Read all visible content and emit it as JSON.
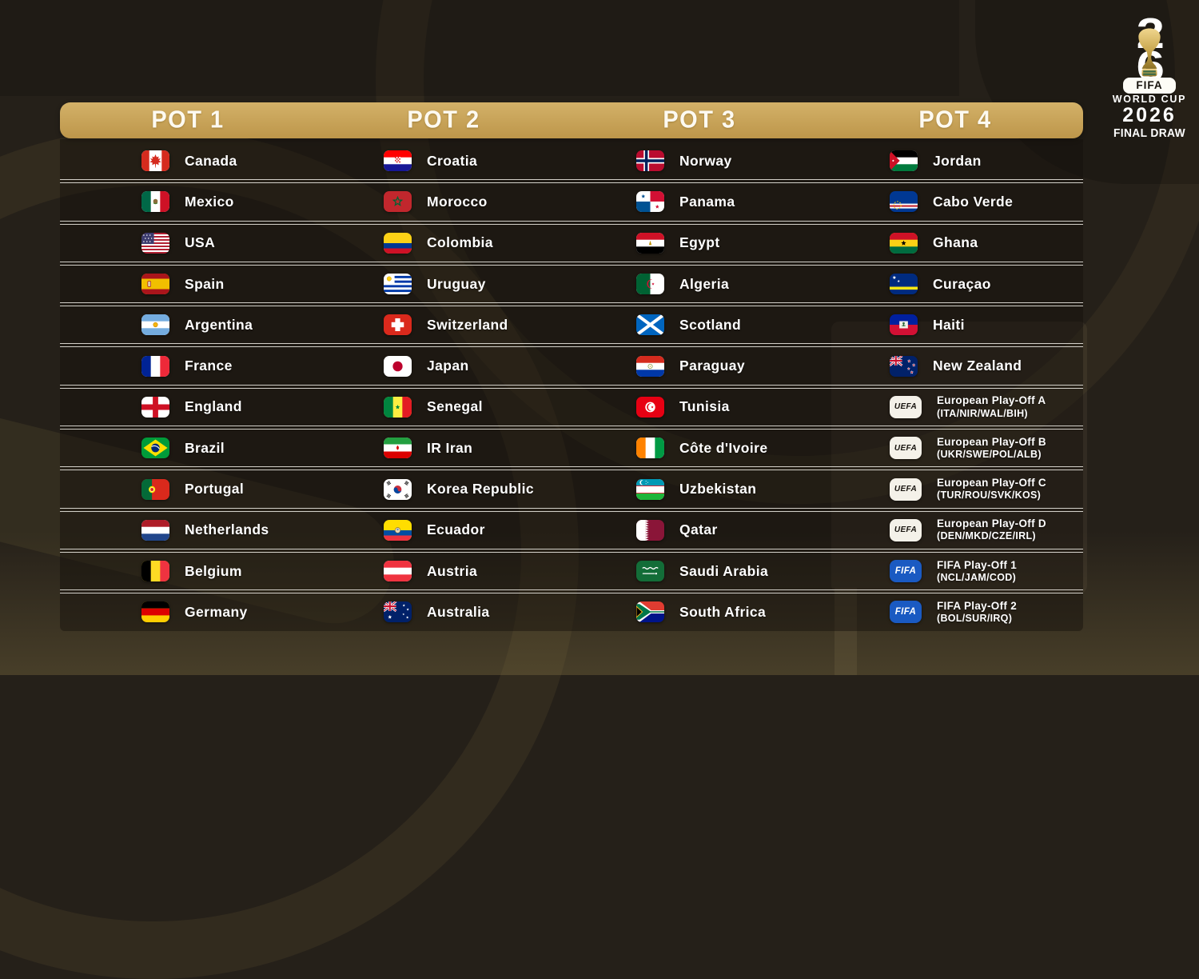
{
  "badges": {
    "uefa": "UEFA",
    "fifa": "FIFA"
  },
  "colors": {
    "header_gold": "#C7A355",
    "background": "#252019",
    "separator": "#FAF8F0",
    "fifa_badge_blue": "#1A5AC2",
    "uefa_badge_white": "#F4F1E9",
    "text": "#FFFFFF"
  },
  "logo": {
    "digit_top": "2",
    "digit_bottom": "6",
    "fifa": "FIFA",
    "world_cup": "WORLD CUP",
    "year": "2026",
    "final_draw": "FINAL DRAW",
    "trophy_icon": "world-cup-trophy-icon"
  },
  "pots": [
    {
      "name": "POT 1",
      "teams": [
        {
          "label": "Canada",
          "flag": "canada"
        },
        {
          "label": "Mexico",
          "flag": "mexico"
        },
        {
          "label": "USA",
          "flag": "usa"
        },
        {
          "label": "Spain",
          "flag": "spain"
        },
        {
          "label": "Argentina",
          "flag": "argentina"
        },
        {
          "label": "France",
          "flag": "france"
        },
        {
          "label": "England",
          "flag": "england"
        },
        {
          "label": "Brazil",
          "flag": "brazil"
        },
        {
          "label": "Portugal",
          "flag": "portugal"
        },
        {
          "label": "Netherlands",
          "flag": "netherlands"
        },
        {
          "label": "Belgium",
          "flag": "belgium"
        },
        {
          "label": "Germany",
          "flag": "germany"
        }
      ]
    },
    {
      "name": "POT 2",
      "teams": [
        {
          "label": "Croatia",
          "flag": "croatia"
        },
        {
          "label": "Morocco",
          "flag": "morocco"
        },
        {
          "label": "Colombia",
          "flag": "colombia"
        },
        {
          "label": "Uruguay",
          "flag": "uruguay"
        },
        {
          "label": "Switzerland",
          "flag": "switzerland"
        },
        {
          "label": "Japan",
          "flag": "japan"
        },
        {
          "label": "Senegal",
          "flag": "senegal"
        },
        {
          "label": "IR Iran",
          "flag": "iran"
        },
        {
          "label": "Korea Republic",
          "flag": "korea"
        },
        {
          "label": "Ecuador",
          "flag": "ecuador"
        },
        {
          "label": "Austria",
          "flag": "austria"
        },
        {
          "label": "Australia",
          "flag": "australia"
        }
      ]
    },
    {
      "name": "POT 3",
      "teams": [
        {
          "label": "Norway",
          "flag": "norway"
        },
        {
          "label": "Panama",
          "flag": "panama"
        },
        {
          "label": "Egypt",
          "flag": "egypt"
        },
        {
          "label": "Algeria",
          "flag": "algeria"
        },
        {
          "label": "Scotland",
          "flag": "scotland"
        },
        {
          "label": "Paraguay",
          "flag": "paraguay"
        },
        {
          "label": "Tunisia",
          "flag": "tunisia"
        },
        {
          "label": "Côte d'Ivoire",
          "flag": "cotedivoire"
        },
        {
          "label": "Uzbekistan",
          "flag": "uzbekistan"
        },
        {
          "label": "Qatar",
          "flag": "qatar"
        },
        {
          "label": "Saudi Arabia",
          "flag": "saudiarabia"
        },
        {
          "label": "South Africa",
          "flag": "southafrica"
        }
      ]
    },
    {
      "name": "POT 4",
      "teams": [
        {
          "label": "Jordan",
          "flag": "jordan"
        },
        {
          "label": "Cabo Verde",
          "flag": "caboverde"
        },
        {
          "label": "Ghana",
          "flag": "ghana"
        },
        {
          "label": "Curaçao",
          "flag": "curacao"
        },
        {
          "label": "Haiti",
          "flag": "haiti"
        },
        {
          "label": "New Zealand",
          "flag": "newzealand"
        },
        {
          "label": "European Play-Off A",
          "sublabel": "(ITA/NIR/WAL/BIH)",
          "badge": "uefa"
        },
        {
          "label": "European Play-Off B",
          "sublabel": "(UKR/SWE/POL/ALB)",
          "badge": "uefa"
        },
        {
          "label": "European Play-Off C",
          "sublabel": "(TUR/ROU/SVK/KOS)",
          "badge": "uefa"
        },
        {
          "label": "European Play-Off D",
          "sublabel": "(DEN/MKD/CZE/IRL)",
          "badge": "uefa"
        },
        {
          "label": "FIFA Play-Off 1",
          "sublabel": "(NCL/JAM/COD)",
          "badge": "fifa"
        },
        {
          "label": "FIFA Play-Off 2",
          "sublabel": "(BOL/SUR/IRQ)",
          "badge": "fifa"
        }
      ]
    }
  ]
}
